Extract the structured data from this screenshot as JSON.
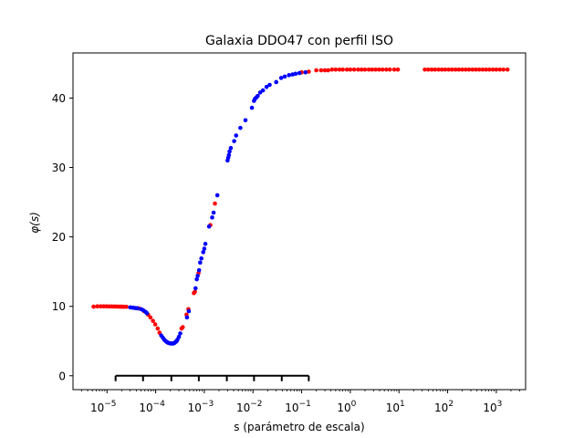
{
  "chart_data": {
    "type": "scatter",
    "title": "Galaxia DDO47 con perfil ISO",
    "xlabel": "s (parámetro de escala)",
    "ylabel": "φ(s)",
    "xscale": "log",
    "xlim": [
      2e-06,
      4000
    ],
    "ylim": [
      -2,
      46.5
    ],
    "grid": false,
    "legend": "none",
    "yticks": [
      0,
      10,
      20,
      30,
      40
    ],
    "xticks": [
      {
        "value": 1e-05,
        "base": "10",
        "exp": "−5"
      },
      {
        "value": 0.0001,
        "base": "10",
        "exp": "−4"
      },
      {
        "value": 0.001,
        "base": "10",
        "exp": "−3"
      },
      {
        "value": 0.01,
        "base": "10",
        "exp": "−2"
      },
      {
        "value": 0.1,
        "base": "10",
        "exp": "−1"
      },
      {
        "value": 1,
        "base": "10",
        "exp": "0"
      },
      {
        "value": 10,
        "base": "10",
        "exp": "1"
      },
      {
        "value": 100,
        "base": "10",
        "exp": "2"
      },
      {
        "value": 1000,
        "base": "10",
        "exp": "3"
      }
    ],
    "colors": {
      "red": "#ff0000",
      "blue": "#0000ff"
    },
    "series": [
      {
        "color": "red",
        "points": [
          [
            5.3e-06,
            9.95
          ],
          [
            6.3e-06,
            10.0
          ],
          [
            7.4e-06,
            10.0
          ],
          [
            8.5e-06,
            10.0
          ],
          [
            9.7e-06,
            10.0
          ],
          [
            1.1e-05,
            9.98
          ],
          [
            1.25e-05,
            9.98
          ],
          [
            1.4e-05,
            9.97
          ],
          [
            1.55e-05,
            9.97
          ],
          [
            1.7e-05,
            9.96
          ],
          [
            1.85e-05,
            9.95
          ],
          [
            2e-05,
            9.95
          ],
          [
            2.2e-05,
            9.93
          ],
          [
            2.5e-05,
            9.93
          ],
          [
            4.5e-05,
            9.7
          ],
          [
            5.8e-05,
            9.3
          ],
          [
            7e-05,
            8.8
          ],
          [
            7.8e-05,
            8.4
          ],
          [
            8.8e-05,
            7.9
          ],
          [
            9.8e-05,
            7.4
          ],
          [
            0.00011,
            6.8
          ],
          [
            0.00012,
            6.2
          ],
          [
            0.00034,
            6.8
          ],
          [
            0.00036,
            7.0
          ],
          [
            0.00043,
            8.8
          ],
          [
            0.00047,
            9.6
          ],
          [
            0.00061,
            11.9
          ],
          [
            0.00064,
            12.1
          ],
          [
            0.00076,
            14.8
          ],
          [
            0.00133,
            21.7
          ],
          [
            0.00165,
            24.8
          ],
          [
            0.1,
            43.7
          ],
          [
            0.14,
            43.8
          ],
          [
            0.2,
            44.0
          ],
          [
            0.25,
            44.0
          ],
          [
            0.3,
            44.0
          ],
          [
            0.35,
            44.0
          ],
          [
            0.42,
            44.1
          ],
          [
            0.5,
            44.1
          ],
          [
            0.6,
            44.1
          ],
          [
            0.7,
            44.1
          ],
          [
            0.85,
            44.1
          ],
          [
            1.0,
            44.1
          ],
          [
            1.2,
            44.1
          ],
          [
            1.45,
            44.1
          ],
          [
            1.7,
            44.1
          ],
          [
            2.0,
            44.1
          ],
          [
            2.4,
            44.1
          ],
          [
            2.8,
            44.1
          ],
          [
            3.3,
            44.1
          ],
          [
            3.9,
            44.1
          ],
          [
            4.6,
            44.1
          ],
          [
            5.5,
            44.1
          ],
          [
            6.5,
            44.1
          ],
          [
            8.0,
            44.1
          ],
          [
            9.5,
            44.1
          ],
          [
            34,
            44.1
          ],
          [
            40,
            44.1
          ],
          [
            47,
            44.1
          ],
          [
            55,
            44.1
          ],
          [
            65,
            44.1
          ],
          [
            76,
            44.1
          ],
          [
            89,
            44.1
          ],
          [
            105,
            44.1
          ],
          [
            123,
            44.1
          ],
          [
            145,
            44.1
          ],
          [
            170,
            44.1
          ],
          [
            200,
            44.1
          ],
          [
            235,
            44.1
          ],
          [
            275,
            44.1
          ],
          [
            325,
            44.1
          ],
          [
            380,
            44.1
          ],
          [
            445,
            44.1
          ],
          [
            525,
            44.1
          ],
          [
            615,
            44.1
          ],
          [
            720,
            44.1
          ],
          [
            850,
            44.1
          ],
          [
            1000,
            44.1
          ],
          [
            1180,
            44.1
          ],
          [
            1400,
            44.1
          ],
          [
            1700,
            44.1
          ]
        ]
      },
      {
        "color": "blue",
        "points": [
          [
            3e-05,
            9.85
          ],
          [
            3.4e-05,
            9.8
          ],
          [
            3.8e-05,
            9.75
          ],
          [
            4.2e-05,
            9.72
          ],
          [
            5e-05,
            9.6
          ],
          [
            5.5e-05,
            9.45
          ],
          [
            6.2e-05,
            9.2
          ],
          [
            6.6e-05,
            9.0
          ],
          [
            0.00013,
            5.8
          ],
          [
            0.00014,
            5.5
          ],
          [
            0.00015,
            5.2
          ],
          [
            0.00016,
            5.0
          ],
          [
            0.00017,
            4.85
          ],
          [
            0.00018,
            4.75
          ],
          [
            0.00019,
            4.7
          ],
          [
            0.0002,
            4.65
          ],
          [
            0.00021,
            4.65
          ],
          [
            0.00022,
            4.65
          ],
          [
            0.00023,
            4.65
          ],
          [
            0.00024,
            4.7
          ],
          [
            0.00025,
            4.8
          ],
          [
            0.00026,
            4.9
          ],
          [
            0.00027,
            5.0
          ],
          [
            0.00028,
            5.2
          ],
          [
            0.0003,
            5.6
          ],
          [
            0.00032,
            6.1
          ],
          [
            0.00044,
            8.4
          ],
          [
            0.00048,
            9.3
          ],
          [
            0.00066,
            12.6
          ],
          [
            0.0007,
            13.9
          ],
          [
            0.00073,
            14.4
          ],
          [
            0.00078,
            15.2
          ],
          [
            0.00082,
            16.3
          ],
          [
            0.00087,
            16.9
          ],
          [
            0.00095,
            17.8
          ],
          [
            0.001,
            18.3
          ],
          [
            0.00105,
            19.0
          ],
          [
            0.00125,
            21.5
          ],
          [
            0.00145,
            22.8
          ],
          [
            0.00155,
            23.5
          ],
          [
            0.00185,
            26.0
          ],
          [
            0.003,
            31.0
          ],
          [
            0.0031,
            31.4
          ],
          [
            0.0032,
            31.8
          ],
          [
            0.0033,
            32.3
          ],
          [
            0.0035,
            32.8
          ],
          [
            0.0041,
            33.8
          ],
          [
            0.0045,
            34.6
          ],
          [
            0.0055,
            35.7
          ],
          [
            0.007,
            36.8
          ],
          [
            0.0095,
            38.6
          ],
          [
            0.0105,
            39.6
          ],
          [
            0.011,
            39.9
          ],
          [
            0.0118,
            40.1
          ],
          [
            0.0125,
            40.3
          ],
          [
            0.014,
            40.8
          ],
          [
            0.016,
            41.1
          ],
          [
            0.019,
            41.6
          ],
          [
            0.022,
            41.9
          ],
          [
            0.03,
            42.3
          ],
          [
            0.038,
            42.9
          ],
          [
            0.045,
            43.1
          ],
          [
            0.055,
            43.3
          ],
          [
            0.065,
            43.4
          ],
          [
            0.075,
            43.5
          ],
          [
            0.09,
            43.6
          ],
          [
            0.12,
            43.7
          ]
        ]
      }
    ],
    "annotation": {
      "bracket": {
        "x_start": 1.5e-05,
        "x_end": 0.14,
        "y": 0,
        "ticks": [
          1.5e-05,
          5.5e-05,
          0.00021,
          0.00077,
          0.0029,
          0.0105,
          0.039,
          0.14
        ]
      }
    }
  }
}
